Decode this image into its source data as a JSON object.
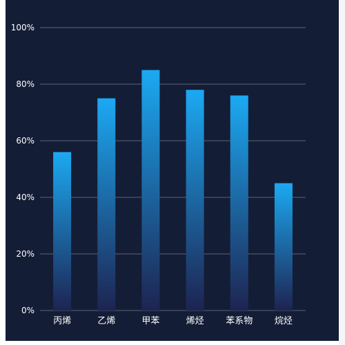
{
  "chart_data": {
    "type": "bar",
    "categories": [
      "丙烯",
      "乙烯",
      "甲苯",
      "烯烃",
      "苯系物",
      "烷烃"
    ],
    "values": [
      56,
      75,
      85,
      78,
      76,
      45
    ],
    "title": "",
    "xlabel": "",
    "ylabel": "",
    "ylim": [
      0,
      100
    ],
    "y_ticks": [
      "0%",
      "20%",
      "40%",
      "60%",
      "80%",
      "100%"
    ],
    "grid": true,
    "colors": {
      "background": "#141d36",
      "grid": "#5a6275",
      "bar_top": "#1ca9f2",
      "bar_bottom": "#1d2451",
      "text": "#ffffff"
    }
  }
}
